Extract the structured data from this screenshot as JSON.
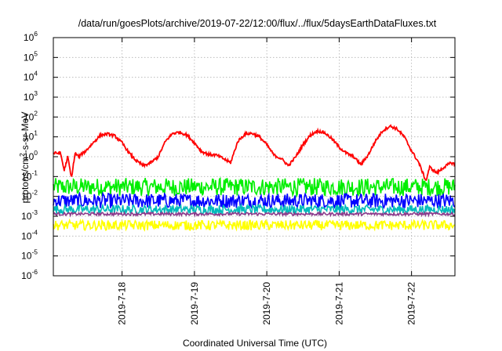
{
  "chart_data": {
    "type": "line",
    "title": "/data/run/goesPlots/archive/2019-07-22/12:00/flux/../flux/5daysEarthDataFluxes.txt",
    "xlabel": "Coordinated Universal Time (UTC)",
    "ylabel": {
      "base": "protons/cm",
      "sup": "2",
      "rest": "-s-sr-MeV"
    },
    "yscale": "log",
    "ylim": [
      1e-06,
      1000000.0
    ],
    "ytick_exponents": [
      -6,
      -5,
      -4,
      -3,
      -2,
      -1,
      0,
      1,
      2,
      3,
      4,
      5,
      6
    ],
    "ytick_base": "10",
    "xlim_days": [
      0,
      5.55
    ],
    "xticks": [
      {
        "day": 0.95,
        "label": "2019-7-18"
      },
      {
        "day": 1.95,
        "label": "2019-7-19"
      },
      {
        "day": 2.95,
        "label": "2019-7-20"
      },
      {
        "day": 3.95,
        "label": "2019-7-21"
      },
      {
        "day": 4.95,
        "label": "2019-7-22"
      }
    ],
    "grid": true,
    "legend": "none",
    "series": [
      {
        "color": "#ff0000",
        "x": [
          0,
          0.1,
          0.15,
          0.2,
          0.25,
          0.3,
          0.35,
          0.45,
          0.55,
          0.65,
          0.75,
          0.85,
          0.95,
          1.05,
          1.15,
          1.25,
          1.35,
          1.45,
          1.55,
          1.65,
          1.75,
          1.85,
          1.95,
          2.05,
          2.15,
          2.25,
          2.35,
          2.45,
          2.55,
          2.65,
          2.75,
          2.85,
          2.95,
          3.05,
          3.15,
          3.25,
          3.35,
          3.45,
          3.55,
          3.65,
          3.75,
          3.85,
          3.95,
          4.05,
          4.15,
          4.25,
          4.35,
          4.45,
          4.55,
          4.65,
          4.75,
          4.85,
          4.95,
          5.05,
          5.15,
          5.2,
          5.3,
          5.4,
          5.5,
          5.55
        ],
        "y": [
          1.5,
          1.5,
          0.2,
          1.0,
          0.08,
          1.5,
          1.0,
          2.0,
          5,
          12,
          14,
          11,
          5,
          1.5,
          0.6,
          0.35,
          0.5,
          1.0,
          6,
          15,
          17,
          12,
          5,
          1.8,
          1.3,
          1.2,
          0.8,
          0.5,
          6,
          14,
          15,
          10,
          4,
          1.2,
          0.8,
          0.35,
          1.0,
          4,
          12,
          20,
          16,
          8,
          3,
          1.5,
          1.0,
          0.4,
          1.2,
          6,
          20,
          35,
          25,
          10,
          2,
          0.5,
          0.06,
          0.3,
          0.15,
          0.3,
          0.5,
          0.4
        ]
      },
      {
        "color": "#00ee00",
        "center": 0.03,
        "spread_decades": 0.9
      },
      {
        "color": "#0000ff",
        "center": 0.006,
        "spread_decades": 0.75
      },
      {
        "color": "#00bbbb",
        "center": 0.0022,
        "spread_decades": 0.45
      },
      {
        "color": "#8b3a8b",
        "center": 0.0013,
        "spread_decades": 0.15
      },
      {
        "color": "#ffff00",
        "center": 0.00035,
        "spread_decades": 0.5
      }
    ]
  }
}
